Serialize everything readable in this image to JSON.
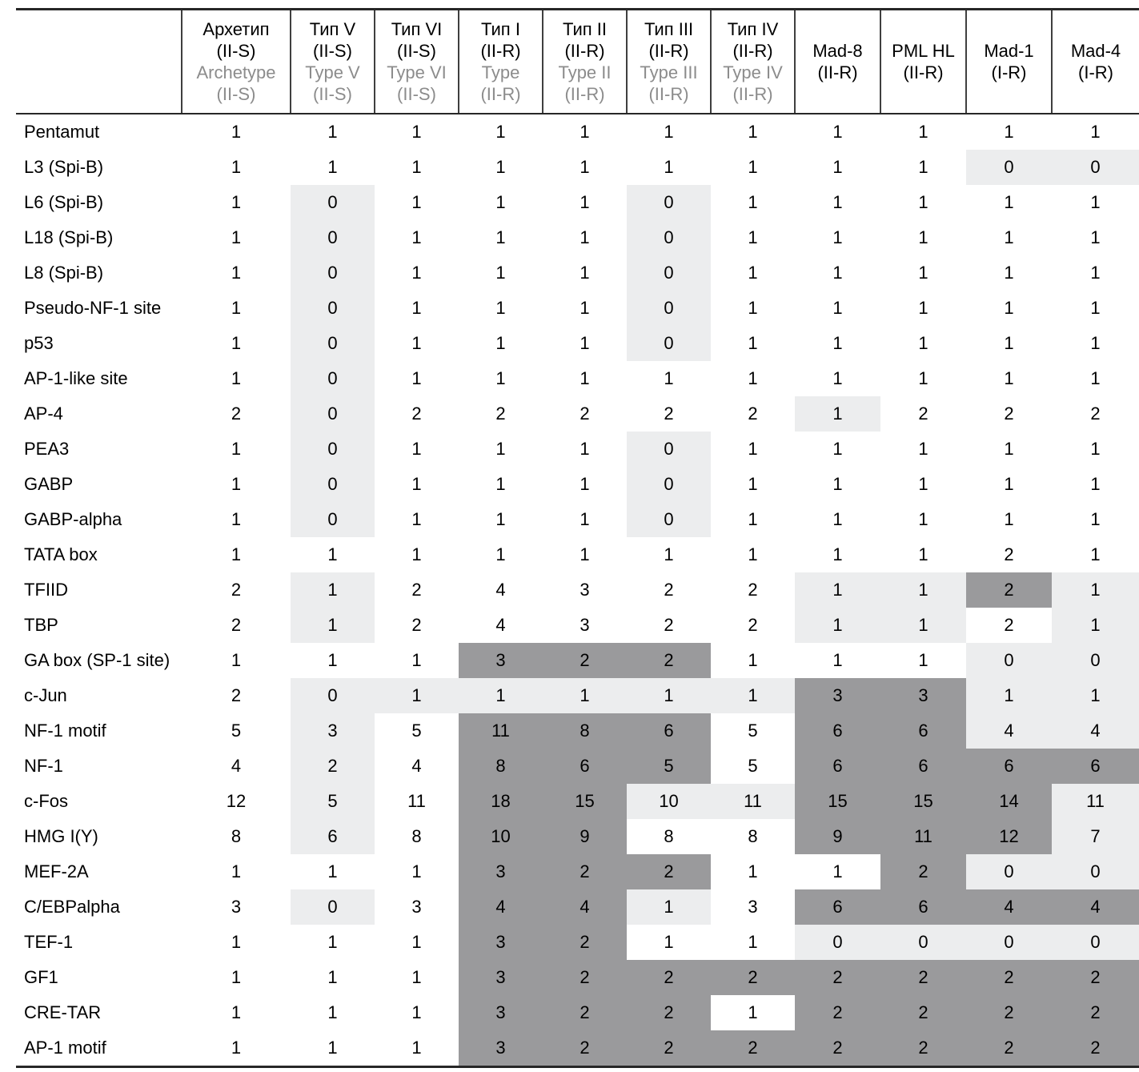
{
  "table": {
    "corner_label": "",
    "columns": [
      {
        "title": [
          "Архетип",
          "(II-S)"
        ],
        "subtitle": [
          "Archetype",
          "(II-S)"
        ]
      },
      {
        "title": [
          "Тип V",
          "(II-S)"
        ],
        "subtitle": [
          "Type V",
          "(II-S)"
        ]
      },
      {
        "title": [
          "Тип VI",
          "(II-S)"
        ],
        "subtitle": [
          "Type VI",
          "(II-S)"
        ]
      },
      {
        "title": [
          "Тип I",
          "(II-R)"
        ],
        "subtitle": [
          "Type",
          "(II-R)"
        ]
      },
      {
        "title": [
          "Тип II",
          "(II-R)"
        ],
        "subtitle": [
          "Type II",
          "(II-R)"
        ]
      },
      {
        "title": [
          "Тип III",
          "(II-R)"
        ],
        "subtitle": [
          "Type III",
          "(II-R)"
        ]
      },
      {
        "title": [
          "Тип IV",
          "(II-R)"
        ],
        "subtitle": [
          "Type IV",
          "(II-R)"
        ]
      },
      {
        "title": [
          "Mad-8",
          "(II-R)"
        ],
        "subtitle": []
      },
      {
        "title": [
          "PML HL",
          "(II-R)"
        ],
        "subtitle": []
      },
      {
        "title": [
          "Mad-1",
          "(I-R)"
        ],
        "subtitle": []
      },
      {
        "title": [
          "Mad-4",
          "(I-R)"
        ],
        "subtitle": []
      }
    ],
    "rows": [
      {
        "label": "Pentamut",
        "values": [
          1,
          1,
          1,
          1,
          1,
          1,
          1,
          1,
          1,
          1,
          1
        ],
        "shades": "wwwwwwwwwww"
      },
      {
        "label": "L3 (Spi-B)",
        "values": [
          1,
          1,
          1,
          1,
          1,
          1,
          1,
          1,
          1,
          0,
          0
        ],
        "shades": "wwwwwwwwwll"
      },
      {
        "label": "L6 (Spi-B)",
        "values": [
          1,
          0,
          1,
          1,
          1,
          0,
          1,
          1,
          1,
          1,
          1
        ],
        "shades": "wlwwwlwwwww"
      },
      {
        "label": "L18 (Spi-B)",
        "values": [
          1,
          0,
          1,
          1,
          1,
          0,
          1,
          1,
          1,
          1,
          1
        ],
        "shades": "wlwwwlwwwww"
      },
      {
        "label": "L8 (Spi-B)",
        "values": [
          1,
          0,
          1,
          1,
          1,
          0,
          1,
          1,
          1,
          1,
          1
        ],
        "shades": "wlwwwlwwwww"
      },
      {
        "label": "Pseudo-NF-1 site",
        "values": [
          1,
          0,
          1,
          1,
          1,
          0,
          1,
          1,
          1,
          1,
          1
        ],
        "shades": "wlwwwlwwwww"
      },
      {
        "label": "p53",
        "values": [
          1,
          0,
          1,
          1,
          1,
          0,
          1,
          1,
          1,
          1,
          1
        ],
        "shades": "wlwwwlwwwww"
      },
      {
        "label": "AP-1-like site",
        "values": [
          1,
          0,
          1,
          1,
          1,
          1,
          1,
          1,
          1,
          1,
          1
        ],
        "shades": "wlwwwwwwwww"
      },
      {
        "label": "AP-4",
        "values": [
          2,
          0,
          2,
          2,
          2,
          2,
          2,
          1,
          2,
          2,
          2
        ],
        "shades": "wlwwwwwlwww"
      },
      {
        "label": "PEA3",
        "values": [
          1,
          0,
          1,
          1,
          1,
          0,
          1,
          1,
          1,
          1,
          1
        ],
        "shades": "wlwwwlwwwww"
      },
      {
        "label": "GABP",
        "values": [
          1,
          0,
          1,
          1,
          1,
          0,
          1,
          1,
          1,
          1,
          1
        ],
        "shades": "wlwwwlwwwww"
      },
      {
        "label": "GABP-alpha",
        "values": [
          1,
          0,
          1,
          1,
          1,
          0,
          1,
          1,
          1,
          1,
          1
        ],
        "shades": "wlwwwlwwwww"
      },
      {
        "label": "TATA box",
        "values": [
          1,
          1,
          1,
          1,
          1,
          1,
          1,
          1,
          1,
          2,
          1
        ],
        "shades": "wwwwwwwwwww"
      },
      {
        "label": "TFIID",
        "values": [
          2,
          1,
          2,
          4,
          3,
          2,
          2,
          1,
          1,
          2,
          1
        ],
        "shades": "wlwwwwwlldl"
      },
      {
        "label": "TBP",
        "values": [
          2,
          1,
          2,
          4,
          3,
          2,
          2,
          1,
          1,
          2,
          1
        ],
        "shades": "wlwwwwwllwl"
      },
      {
        "label": "GA box (SP-1 site)",
        "values": [
          1,
          1,
          1,
          3,
          2,
          2,
          1,
          1,
          1,
          0,
          0
        ],
        "shades": "wwwdddwwwll"
      },
      {
        "label": "c-Jun",
        "values": [
          2,
          0,
          1,
          1,
          1,
          1,
          1,
          3,
          3,
          1,
          1
        ],
        "shades": "wllllllddll"
      },
      {
        "label": "NF-1 motif",
        "values": [
          5,
          3,
          5,
          11,
          8,
          6,
          5,
          6,
          6,
          4,
          4
        ],
        "shades": "wlwdddwddll"
      },
      {
        "label": "NF-1",
        "values": [
          4,
          2,
          4,
          8,
          6,
          5,
          5,
          6,
          6,
          6,
          6
        ],
        "shades": "wlwdddwdddd"
      },
      {
        "label": "c-Fos",
        "values": [
          12,
          5,
          11,
          18,
          15,
          10,
          11,
          15,
          15,
          14,
          11
        ],
        "shades": "wlwddlldddl"
      },
      {
        "label": "HMG I(Y)",
        "values": [
          8,
          6,
          8,
          10,
          9,
          8,
          8,
          9,
          11,
          12,
          7
        ],
        "shades": "wlwddwwdddl"
      },
      {
        "label": "MEF-2A",
        "values": [
          1,
          1,
          1,
          3,
          2,
          2,
          1,
          1,
          2,
          0,
          0
        ],
        "shades": "wwwdddwwdll"
      },
      {
        "label": "C/EBPalpha",
        "values": [
          3,
          0,
          3,
          4,
          4,
          1,
          3,
          6,
          6,
          4,
          4
        ],
        "shades": "wlwddlwdddd"
      },
      {
        "label": "TEF-1",
        "values": [
          1,
          1,
          1,
          3,
          2,
          1,
          1,
          0,
          0,
          0,
          0
        ],
        "shades": "wwwddwwllll"
      },
      {
        "label": "GF1",
        "values": [
          1,
          1,
          1,
          3,
          2,
          2,
          2,
          2,
          2,
          2,
          2
        ],
        "shades": "wwwdddddddd"
      },
      {
        "label": "CRE-TAR",
        "values": [
          1,
          1,
          1,
          3,
          2,
          2,
          1,
          2,
          2,
          2,
          2
        ],
        "shades": "wwwdddwdddd"
      },
      {
        "label": "AP-1 motif",
        "values": [
          1,
          1,
          1,
          3,
          2,
          2,
          2,
          2,
          2,
          2,
          2
        ],
        "shades": "wwwdddddddd"
      }
    ]
  },
  "colors": {
    "cell_dark": "#9a9a9c",
    "cell_light": "#ecedee",
    "header_translation_gray": "#8c8c8c",
    "rule_black": "#272727",
    "column_divider": "#3f3f3f"
  }
}
